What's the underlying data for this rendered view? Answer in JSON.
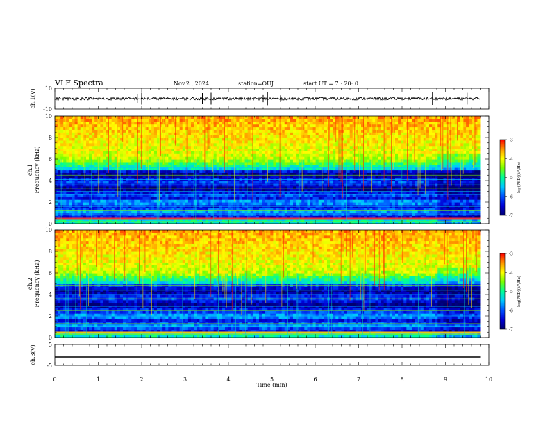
{
  "header": {
    "title": "VLF Spectra",
    "date": "Nov.2 , 2024",
    "station": "station=OUJ",
    "start": "start UT = 7 : 20: 0"
  },
  "colors": {
    "spectrum_stops": [
      "#00006e",
      "#0000d6",
      "#0050ff",
      "#00c8ff",
      "#00ff96",
      "#78ff00",
      "#ffff00",
      "#ff9600",
      "#ff0000",
      "#ffdcdc"
    ]
  },
  "chart_data": [
    {
      "type": "line",
      "name": "ch1-waveform",
      "ylabel": "ch.1(V)",
      "ylim": [
        -10,
        10
      ],
      "yticks": [
        10,
        -10
      ],
      "xlim": [
        0,
        10
      ],
      "baseline_v": 0,
      "noise_spikes_min": [
        1.9,
        2.0,
        3.4,
        3.6,
        4.2,
        4.8,
        4.9,
        5.2,
        8.7,
        9.5
      ]
    },
    {
      "type": "heatmap",
      "name": "ch1-spectrogram",
      "ylabel": "ch.1 Frequency (kHz)",
      "xlim": [
        0,
        10
      ],
      "ylim": [
        0,
        10
      ],
      "yticks": [
        "0",
        "2",
        "4",
        "6",
        "8",
        "10"
      ],
      "data_end_min": 9.8,
      "colorbar": {
        "label": "log(PSD)(V²/Hz)",
        "range": [
          -7,
          -3
        ],
        "ticks": [
          "-3",
          "-4",
          "-5",
          "-6",
          "-7"
        ]
      }
    },
    {
      "type": "heatmap",
      "name": "ch2-spectrogram",
      "ylabel": "ch.2 Frequency (kHz)",
      "xlim": [
        0,
        10
      ],
      "ylim": [
        0,
        10
      ],
      "yticks": [
        "0",
        "2",
        "4",
        "6",
        "8",
        "10"
      ],
      "data_end_min": 9.8,
      "colorbar": {
        "label": "log(PSD)(V²/Hz)",
        "range": [
          -7,
          -3
        ],
        "ticks": [
          "-3",
          "-4",
          "-5",
          "-6",
          "-7"
        ]
      }
    },
    {
      "type": "line",
      "name": "ch3-waveform",
      "ylabel": "ch.3(V)",
      "ylim": [
        -5,
        5
      ],
      "yticks": [
        5,
        -5
      ],
      "xlim": [
        0,
        10
      ],
      "baseline_v": -1,
      "xlabel": "Time (min)",
      "xticks": [
        "0",
        "1",
        "2",
        "3",
        "4",
        "5",
        "6",
        "7",
        "8",
        "9",
        "10"
      ]
    }
  ]
}
